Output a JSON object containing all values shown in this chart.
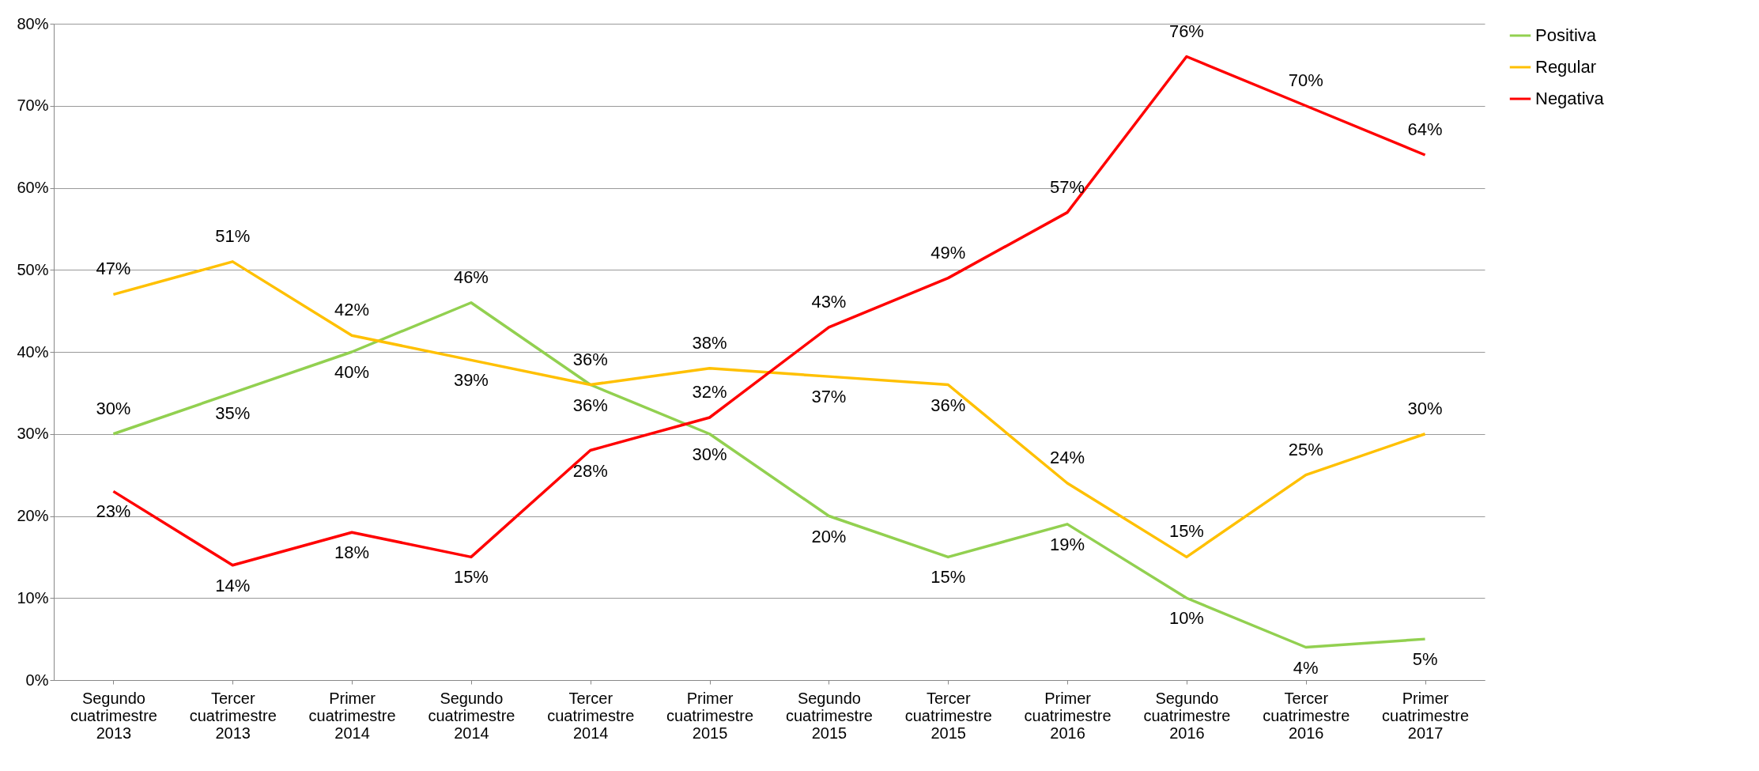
{
  "chart_data": {
    "type": "line",
    "categories": [
      "Segundo cuatrimestre 2013",
      "Tercer cuatrimestre 2013",
      "Primer cuatrimestre 2014",
      "Segundo cuatrimestre 2014",
      "Tercer cuatrimestre 2014",
      "Primer cuatrimestre 2015",
      "Segundo cuatrimestre 2015",
      "Tercer cuatrimestre 2015",
      "Primer cuatrimestre 2016",
      "Segundo cuatrimestre 2016",
      "Tercer cuatrimestre 2016",
      "Primer cuatrimestre 2017"
    ],
    "series": [
      {
        "name": "Positiva",
        "color": "#92d050",
        "values": [
          30,
          35,
          40,
          46,
          36,
          30,
          20,
          15,
          19,
          10,
          4,
          5
        ],
        "value_labels": [
          "30%",
          "35%",
          "40%",
          "46%",
          "36%",
          "30%",
          "20%",
          "15%",
          "19%",
          "10%",
          "4%",
          "5%"
        ]
      },
      {
        "name": "Regular",
        "color": "#ffc000",
        "values": [
          47,
          51,
          42,
          39,
          36,
          38,
          37,
          36,
          24,
          15,
          25,
          30
        ],
        "value_labels": [
          "47%",
          "51%",
          "42%",
          "39%",
          "36%",
          "38%",
          "37%",
          "36%",
          "24%",
          "15%",
          "25%",
          "30%"
        ]
      },
      {
        "name": "Negativa",
        "color": "#ff0000",
        "values": [
          23,
          14,
          18,
          15,
          28,
          32,
          43,
          49,
          57,
          76,
          70,
          64
        ],
        "value_labels": [
          "23%",
          "14%",
          "18%",
          "15%",
          "28%",
          "32%",
          "43%",
          "49%",
          "57%",
          "76%",
          "70%",
          "64%"
        ]
      }
    ],
    "ylim": [
      0,
      80
    ],
    "yticks": [
      {
        "value": 0,
        "label": "0%"
      },
      {
        "value": 10,
        "label": "10%"
      },
      {
        "value": 20,
        "label": "20%"
      },
      {
        "value": 30,
        "label": "30%"
      },
      {
        "value": 40,
        "label": "40%"
      },
      {
        "value": 50,
        "label": "50%"
      },
      {
        "value": 60,
        "label": "60%"
      },
      {
        "value": 70,
        "label": "70%"
      },
      {
        "value": 80,
        "label": "80%"
      }
    ],
    "grid": "y",
    "legend": "right",
    "marker": "none",
    "line_style": "solid"
  }
}
